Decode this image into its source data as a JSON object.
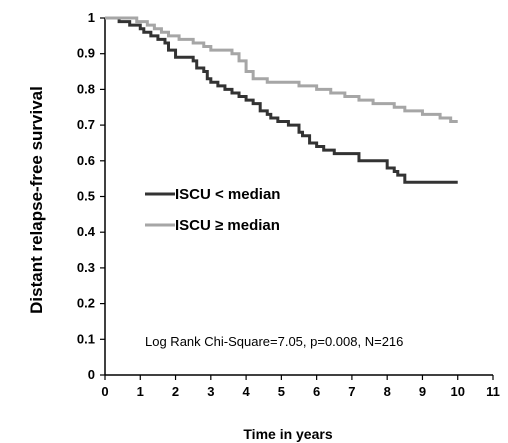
{
  "chart_data": {
    "type": "line",
    "step": true,
    "xlabel": "Time in years",
    "ylabel": "Distant relapse-free survival",
    "xlim": [
      0,
      11
    ],
    "ylim": [
      0,
      1
    ],
    "xticks": [
      "0",
      "1",
      "2",
      "3",
      "4",
      "5",
      "6",
      "7",
      "8",
      "9",
      "10",
      "11"
    ],
    "yticks": [
      "0",
      "0.1",
      "0.2",
      "0.3",
      "0.4",
      "0.5",
      "0.6",
      "0.7",
      "0.8",
      "0.9",
      "1"
    ],
    "grid": false,
    "legend_position": "center-left",
    "annotation": "Log Rank Chi-Square=7.05, p=0.008, N=216",
    "series": [
      {
        "name": "ISCU < median",
        "color": "#333333",
        "x": [
          0,
          0.4,
          0.7,
          1.0,
          1.1,
          1.3,
          1.5,
          1.7,
          1.8,
          2.0,
          2.2,
          2.5,
          2.6,
          2.8,
          2.9,
          3.0,
          3.2,
          3.4,
          3.6,
          3.8,
          4.0,
          4.2,
          4.4,
          4.6,
          4.7,
          4.9,
          5.2,
          5.5,
          5.6,
          5.8,
          6.0,
          6.2,
          6.5,
          6.9,
          7.2,
          8.0,
          8.2,
          8.3,
          8.5,
          9.0,
          10.0
        ],
        "y": [
          1.0,
          0.99,
          0.98,
          0.97,
          0.96,
          0.95,
          0.94,
          0.93,
          0.91,
          0.89,
          0.89,
          0.88,
          0.86,
          0.85,
          0.83,
          0.82,
          0.81,
          0.8,
          0.79,
          0.78,
          0.77,
          0.76,
          0.74,
          0.73,
          0.72,
          0.71,
          0.7,
          0.68,
          0.67,
          0.65,
          0.64,
          0.63,
          0.62,
          0.62,
          0.6,
          0.58,
          0.57,
          0.56,
          0.54,
          0.54,
          0.54
        ]
      },
      {
        "name": "ISCU ≥ median",
        "color": "#a6a6a6",
        "x": [
          0,
          0.9,
          1.2,
          1.4,
          1.6,
          1.8,
          2.1,
          2.5,
          2.8,
          3.0,
          3.6,
          3.8,
          4.0,
          4.2,
          4.6,
          5.0,
          5.5,
          6.0,
          6.4,
          6.8,
          7.2,
          7.6,
          8.0,
          8.2,
          8.5,
          9.0,
          9.5,
          9.8,
          10.0
        ],
        "y": [
          1.0,
          0.99,
          0.98,
          0.97,
          0.96,
          0.95,
          0.94,
          0.93,
          0.92,
          0.91,
          0.9,
          0.88,
          0.85,
          0.83,
          0.82,
          0.82,
          0.81,
          0.8,
          0.79,
          0.78,
          0.77,
          0.76,
          0.76,
          0.75,
          0.74,
          0.73,
          0.72,
          0.71,
          0.71
        ]
      }
    ]
  }
}
